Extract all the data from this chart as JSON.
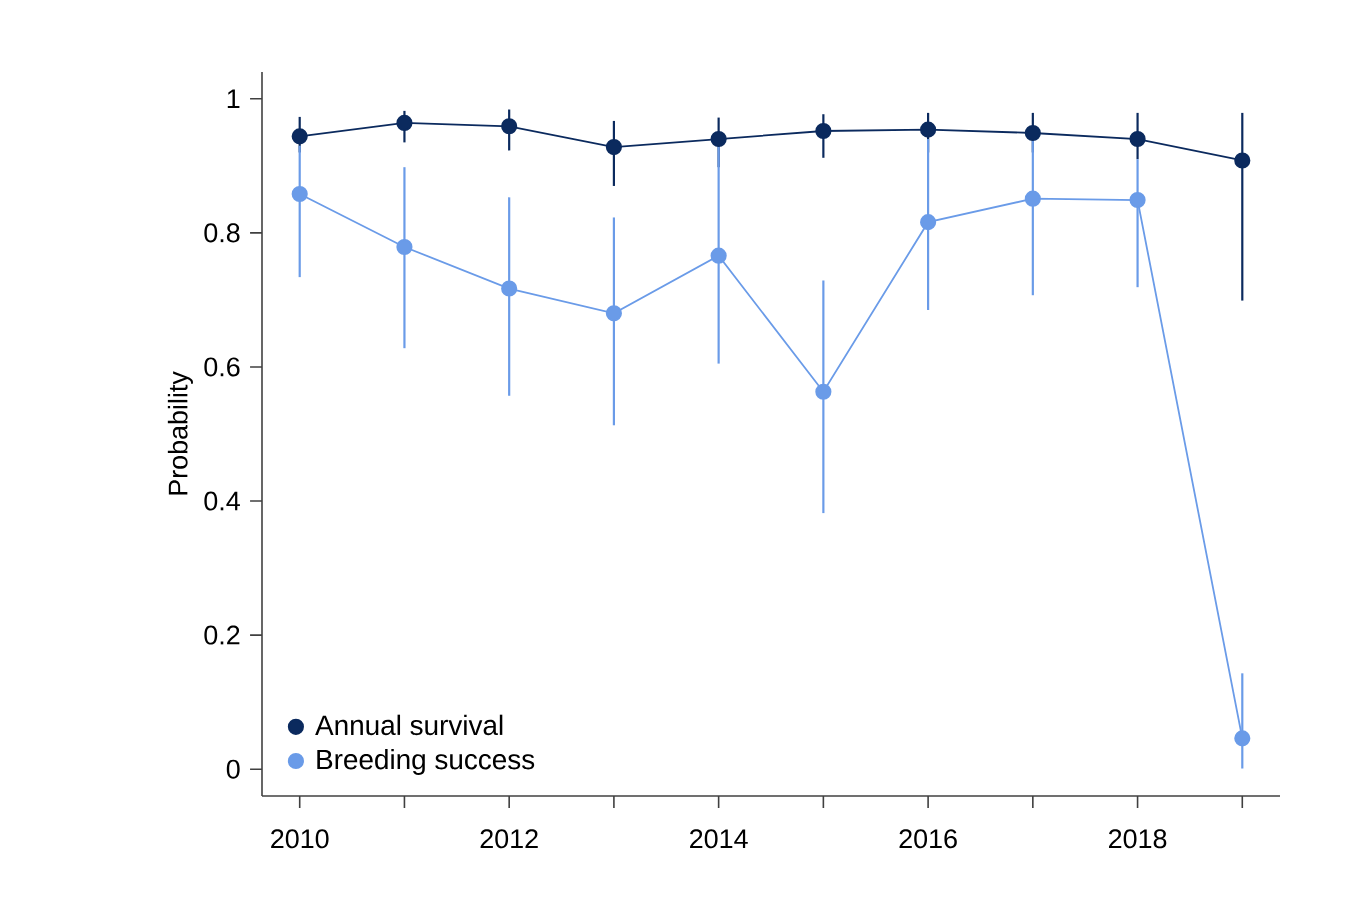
{
  "chart_data": {
    "type": "line",
    "ylabel": "Probability",
    "x": [
      2010,
      2011,
      2012,
      2013,
      2014,
      2015,
      2016,
      2017,
      2018,
      2019
    ],
    "series": [
      {
        "name": "Annual survival",
        "color": "#0b2a5e",
        "values": [
          0.944,
          0.964,
          0.959,
          0.928,
          0.94,
          0.952,
          0.954,
          0.949,
          0.94,
          0.908
        ],
        "errors": [
          [
            0.92,
            0.973
          ],
          [
            0.935,
            0.982
          ],
          [
            0.923,
            0.984
          ],
          [
            0.87,
            0.967
          ],
          [
            0.898,
            0.972
          ],
          [
            0.912,
            0.977
          ],
          [
            0.92,
            0.979
          ],
          [
            0.92,
            0.979
          ],
          [
            0.91,
            0.979
          ],
          [
            0.699,
            0.979
          ]
        ]
      },
      {
        "name": "Breeding success",
        "color": "#6a9be8",
        "values": [
          0.858,
          0.779,
          0.717,
          0.68,
          0.766,
          0.563,
          0.816,
          0.851,
          0.849,
          0.046
        ],
        "errors": [
          [
            0.734,
            0.93
          ],
          [
            0.628,
            0.898
          ],
          [
            0.557,
            0.853
          ],
          [
            0.513,
            0.823
          ],
          [
            0.605,
            0.93
          ],
          [
            0.382,
            0.729
          ],
          [
            0.685,
            0.94
          ],
          [
            0.707,
            0.95
          ],
          [
            0.719,
            0.91
          ],
          [
            0.001,
            0.143
          ]
        ]
      }
    ],
    "xlim": [
      2009.64,
      2019.36
    ],
    "xticks": [
      2010,
      {
        "value": 2011,
        "label": null
      },
      2012,
      {
        "value": 2013,
        "label": null
      },
      2014,
      {
        "value": 2015,
        "label": null
      },
      2016,
      {
        "value": 2017,
        "label": null
      },
      2018,
      {
        "value": 2019,
        "label": null
      }
    ],
    "ylim": [
      -0.04,
      1.04
    ],
    "yticks": [
      {
        "value": 0,
        "label": "0"
      },
      {
        "value": 0.2,
        "label": "0.2"
      },
      {
        "value": 0.4,
        "label": "0.4"
      },
      {
        "value": 0.6,
        "label": "0.6"
      },
      {
        "value": 0.8,
        "label": "0.8"
      },
      {
        "value": 1,
        "label": "1"
      }
    ],
    "grid": false,
    "legend": "bottom left",
    "marker": "circle",
    "line_style": "solid"
  }
}
